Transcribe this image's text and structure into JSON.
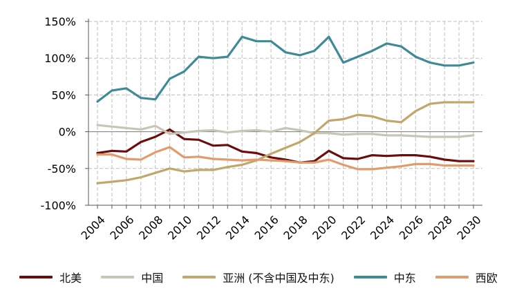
{
  "chart_data": {
    "type": "line",
    "title": "",
    "xlabel": "",
    "ylabel": "",
    "ylim": [
      -100,
      150
    ],
    "yticks": [
      -100,
      -50,
      0,
      50,
      100,
      150
    ],
    "ytick_labels": [
      "-100%",
      "-50%",
      "0%",
      "50%",
      "100%",
      "150%"
    ],
    "x": [
      2004,
      2005,
      2006,
      2007,
      2008,
      2009,
      2010,
      2011,
      2012,
      2013,
      2014,
      2015,
      2016,
      2017,
      2018,
      2019,
      2020,
      2021,
      2022,
      2023,
      2024,
      2025,
      2026,
      2027,
      2028,
      2029,
      2030
    ],
    "xticks": [
      2004,
      2006,
      2008,
      2010,
      2012,
      2014,
      2016,
      2018,
      2020,
      2022,
      2024,
      2026,
      2028,
      2030
    ],
    "xtick_labels": [
      "2004",
      "2006",
      "2008",
      "2010",
      "2012",
      "2014",
      "2016",
      "2018",
      "2020",
      "2022",
      "2024",
      "2026",
      "2028",
      "2030"
    ],
    "grid": true,
    "legend_position": "bottom",
    "series": [
      {
        "name": "北美",
        "color": "#6b0d0d",
        "values": [
          -29,
          -26,
          -27,
          -14,
          -7,
          3,
          -10,
          -11,
          -19,
          -18,
          -27,
          -29,
          -35,
          -38,
          -42,
          -40,
          -26,
          -36,
          -37,
          -32,
          -33,
          -32,
          -32,
          -34,
          -38,
          -40,
          -40
        ]
      },
      {
        "name": "中国",
        "color": "#c6c5b6",
        "values": [
          9,
          7,
          5,
          3,
          8,
          -3,
          -1,
          1,
          2,
          -1,
          1,
          2,
          0,
          5,
          2,
          -2,
          -2,
          -4,
          -3,
          -3,
          -5,
          -5,
          -6,
          -7,
          -7,
          -7,
          -5
        ]
      },
      {
        "name": "亚洲 (不含中国及中东)",
        "color": "#c2a76b",
        "values": [
          -70,
          -68,
          -66,
          -62,
          -56,
          -50,
          -54,
          -52,
          -52,
          -48,
          -45,
          -39,
          -30,
          -22,
          -14,
          -2,
          15,
          17,
          23,
          21,
          15,
          13,
          28,
          38,
          40,
          40,
          40
        ]
      },
      {
        "name": "中东",
        "color": "#3e8a96",
        "values": [
          41,
          56,
          59,
          46,
          44,
          72,
          82,
          102,
          100,
          102,
          129,
          123,
          123,
          108,
          104,
          110,
          129,
          94,
          102,
          110,
          120,
          116,
          102,
          94,
          90,
          90,
          94
        ]
      },
      {
        "name": "西欧",
        "color": "#e09c6c",
        "values": [
          -31,
          -31,
          -37,
          -38,
          -28,
          -21,
          -35,
          -34,
          -37,
          -38,
          -39,
          -38,
          -39,
          -40,
          -42,
          -42,
          -38,
          -45,
          -51,
          -51,
          -49,
          -47,
          -44,
          -44,
          -46,
          -46,
          -46
        ]
      }
    ]
  }
}
